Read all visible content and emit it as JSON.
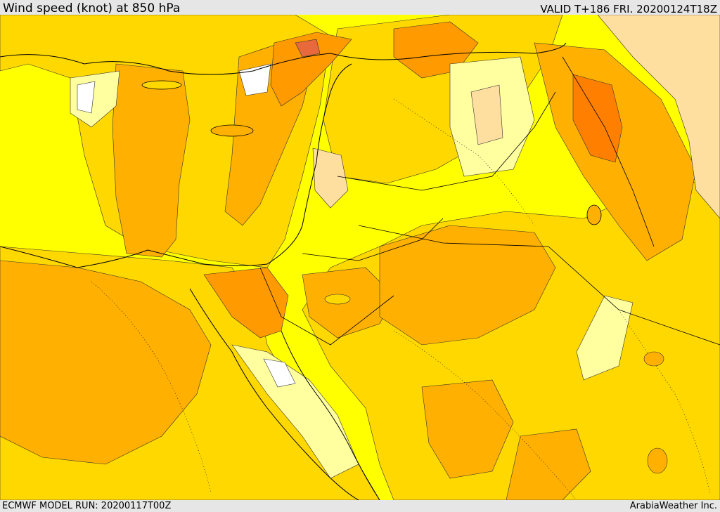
{
  "header": {
    "title": "Wind speed (knot) at 850 hPa",
    "valid": "VALID T+186 FRI. 20200124T18Z"
  },
  "footer": {
    "model_run": "ECMWF MODEL RUN: 20200117T00Z",
    "credit": "ArabiaWeather Inc."
  },
  "map": {
    "region": "Eastern Mediterranean and Middle East",
    "field": "850 hPa wind speed",
    "fill_colors": {
      "calm": "#ffffff",
      "very_light": "#ffffa0",
      "light": "#ffff00",
      "light_moderate": "#ffd800",
      "moderate": "#ffb000",
      "strong": "#ff9a00",
      "very_strong": "#ff8000",
      "peak": "#e86a3c",
      "tan": "#ffdfa0"
    },
    "outline_color": "#000000"
  }
}
